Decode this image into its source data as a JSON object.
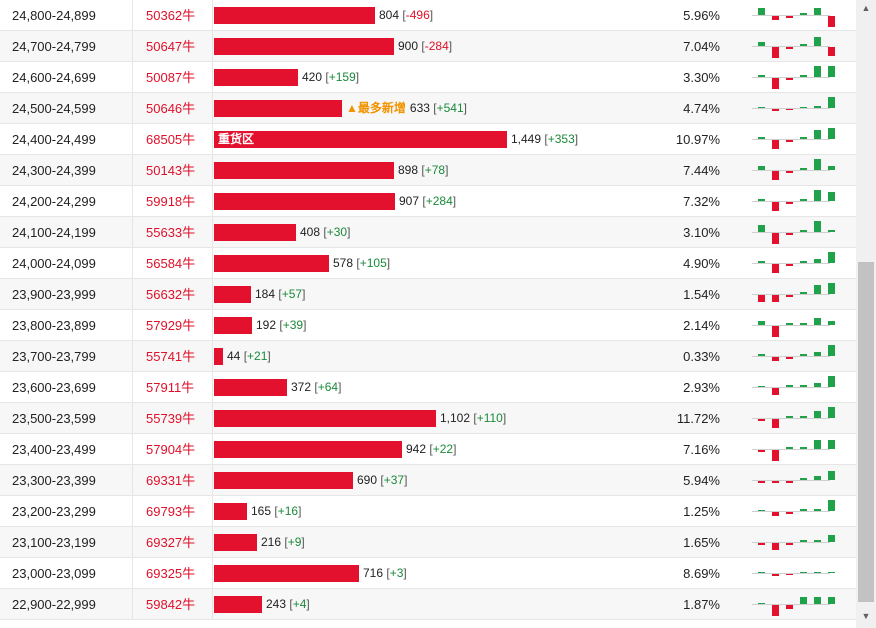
{
  "colors": {
    "bar": "#e3102e",
    "up": "#1fa24a",
    "down": "#e3102e",
    "tag": "#f29400"
  },
  "scroll": {
    "up_glyph": "▲",
    "down_glyph": "▼"
  },
  "rows": [
    {
      "range": "24,800-24,899",
      "code": "50362牛",
      "volume": "804",
      "change": "-496",
      "pct": "5.96%",
      "bar": 0.395,
      "label": "",
      "tag": "",
      "spark": [
        3,
        -2,
        -1,
        1,
        3,
        -5
      ]
    },
    {
      "range": "24,700-24,799",
      "code": "50647牛",
      "volume": "900",
      "change": "-284",
      "pct": "7.04%",
      "bar": 0.44,
      "label": "",
      "tag": "",
      "spark": [
        2,
        -5,
        -1,
        1,
        4,
        -4
      ]
    },
    {
      "range": "24,600-24,699",
      "code": "50087牛",
      "volume": "420",
      "change": "+159",
      "pct": "3.30%",
      "bar": 0.205,
      "label": "",
      "tag": "",
      "spark": [
        1,
        -5,
        -1,
        1,
        5,
        5
      ]
    },
    {
      "range": "24,500-24,599",
      "code": "50646牛",
      "volume": "633",
      "change": "+541",
      "pct": "4.74%",
      "bar": 0.313,
      "label": "",
      "tag": "▲最多新增",
      "spark": [
        0.5,
        -1,
        -0.5,
        0.5,
        1,
        5
      ]
    },
    {
      "range": "24,400-24,499",
      "code": "68505牛",
      "volume": "1,449",
      "change": "+353",
      "pct": "10.97%",
      "bar": 0.718,
      "label": "重货区",
      "tag": "",
      "spark": [
        1,
        -4,
        -1,
        1,
        4,
        5
      ]
    },
    {
      "range": "24,300-24,399",
      "code": "50143牛",
      "volume": "898",
      "change": "+78",
      "pct": "7.44%",
      "bar": 0.44,
      "label": "",
      "tag": "",
      "spark": [
        2,
        -4,
        -1,
        1,
        5,
        2
      ]
    },
    {
      "range": "24,200-24,299",
      "code": "59918牛",
      "volume": "907",
      "change": "+284",
      "pct": "7.32%",
      "bar": 0.443,
      "label": "",
      "tag": "",
      "spark": [
        1,
        -4,
        -1,
        1,
        5,
        4
      ]
    },
    {
      "range": "24,100-24,199",
      "code": "55633牛",
      "volume": "408",
      "change": "+30",
      "pct": "3.10%",
      "bar": 0.2,
      "label": "",
      "tag": "",
      "spark": [
        3,
        -5,
        -1,
        1,
        5,
        1
      ]
    },
    {
      "range": "24,000-24,099",
      "code": "56584牛",
      "volume": "578",
      "change": "+105",
      "pct": "4.90%",
      "bar": 0.283,
      "label": "",
      "tag": "",
      "spark": [
        1,
        -4,
        -1,
        1,
        2,
        5
      ]
    },
    {
      "range": "23,900-23,999",
      "code": "56632牛",
      "volume": "184",
      "change": "+57",
      "pct": "1.54%",
      "bar": 0.09,
      "label": "",
      "tag": "",
      "spark": [
        -3,
        -3,
        -1,
        1,
        4,
        5
      ]
    },
    {
      "range": "23,800-23,899",
      "code": "57929牛",
      "volume": "192",
      "change": "+39",
      "pct": "2.14%",
      "bar": 0.092,
      "label": "",
      "tag": "",
      "spark": [
        2,
        -5,
        1,
        1,
        3,
        2
      ]
    },
    {
      "range": "23,700-23,799",
      "code": "55741牛",
      "volume": "44",
      "change": "+21",
      "pct": "0.33%",
      "bar": 0.022,
      "label": "",
      "tag": "",
      "spark": [
        1,
        -2,
        -1,
        1,
        2,
        5
      ]
    },
    {
      "range": "23,600-23,699",
      "code": "57911牛",
      "volume": "372",
      "change": "+64",
      "pct": "2.93%",
      "bar": 0.18,
      "label": "",
      "tag": "",
      "spark": [
        0,
        -3,
        1,
        1,
        2,
        5
      ]
    },
    {
      "range": "23,500-23,599",
      "code": "55739牛",
      "volume": "1,102",
      "change": "+110",
      "pct": "11.72%",
      "bar": 0.545,
      "label": "",
      "tag": "",
      "spark": [
        -1,
        -4,
        1,
        1,
        3,
        5
      ]
    },
    {
      "range": "23,400-23,499",
      "code": "57904牛",
      "volume": "942",
      "change": "+22",
      "pct": "7.16%",
      "bar": 0.46,
      "label": "",
      "tag": "",
      "spark": [
        -1,
        -5,
        1,
        1,
        4,
        4
      ]
    },
    {
      "range": "23,300-23,399",
      "code": "69331牛",
      "volume": "690",
      "change": "+37",
      "pct": "5.94%",
      "bar": 0.34,
      "label": "",
      "tag": "",
      "spark": [
        -1,
        -1,
        -1,
        1,
        2,
        4
      ]
    },
    {
      "range": "23,200-23,299",
      "code": "69793牛",
      "volume": "165",
      "change": "+16",
      "pct": "1.25%",
      "bar": 0.08,
      "label": "",
      "tag": "",
      "spark": [
        0,
        -2,
        -1,
        1,
        1,
        5
      ]
    },
    {
      "range": "23,100-23,199",
      "code": "69327牛",
      "volume": "216",
      "change": "+9",
      "pct": "1.65%",
      "bar": 0.105,
      "label": "",
      "tag": "",
      "spark": [
        -1,
        -3,
        -1,
        1,
        1,
        3
      ]
    },
    {
      "range": "23,000-23,099",
      "code": "69325牛",
      "volume": "716",
      "change": "+3",
      "pct": "8.69%",
      "bar": 0.355,
      "label": "",
      "tag": "",
      "spark": [
        0.5,
        -1,
        -0.5,
        0.5,
        0.5,
        0.5
      ]
    },
    {
      "range": "22,900-22,999",
      "code": "59842牛",
      "volume": "243",
      "change": "+4",
      "pct": "1.87%",
      "bar": 0.118,
      "label": "",
      "tag": "",
      "spark": [
        0,
        -5,
        -2,
        3,
        3,
        3
      ]
    }
  ]
}
